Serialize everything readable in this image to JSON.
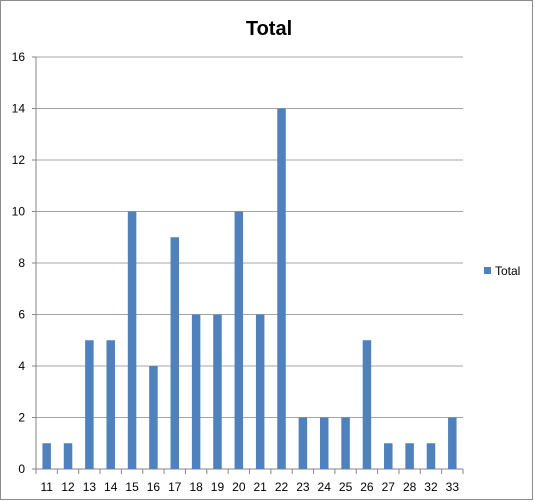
{
  "chart_data": {
    "type": "bar",
    "title": "Total",
    "xlabel": "",
    "ylabel": "",
    "categories": [
      "11",
      "12",
      "13",
      "14",
      "15",
      "16",
      "17",
      "18",
      "19",
      "20",
      "21",
      "22",
      "23",
      "24",
      "25",
      "26",
      "27",
      "28",
      "32",
      "33"
    ],
    "series": [
      {
        "name": "Total",
        "color": "#4f81bd",
        "values": [
          1,
          1,
          5,
          5,
          10,
          4,
          9,
          6,
          6,
          10,
          6,
          14,
          2,
          2,
          2,
          5,
          1,
          1,
          1,
          2
        ]
      }
    ],
    "ylim": [
      0,
      16
    ],
    "yticks": [
      0,
      2,
      4,
      6,
      8,
      10,
      12,
      14,
      16
    ],
    "grid": true,
    "legend_position": "right"
  }
}
